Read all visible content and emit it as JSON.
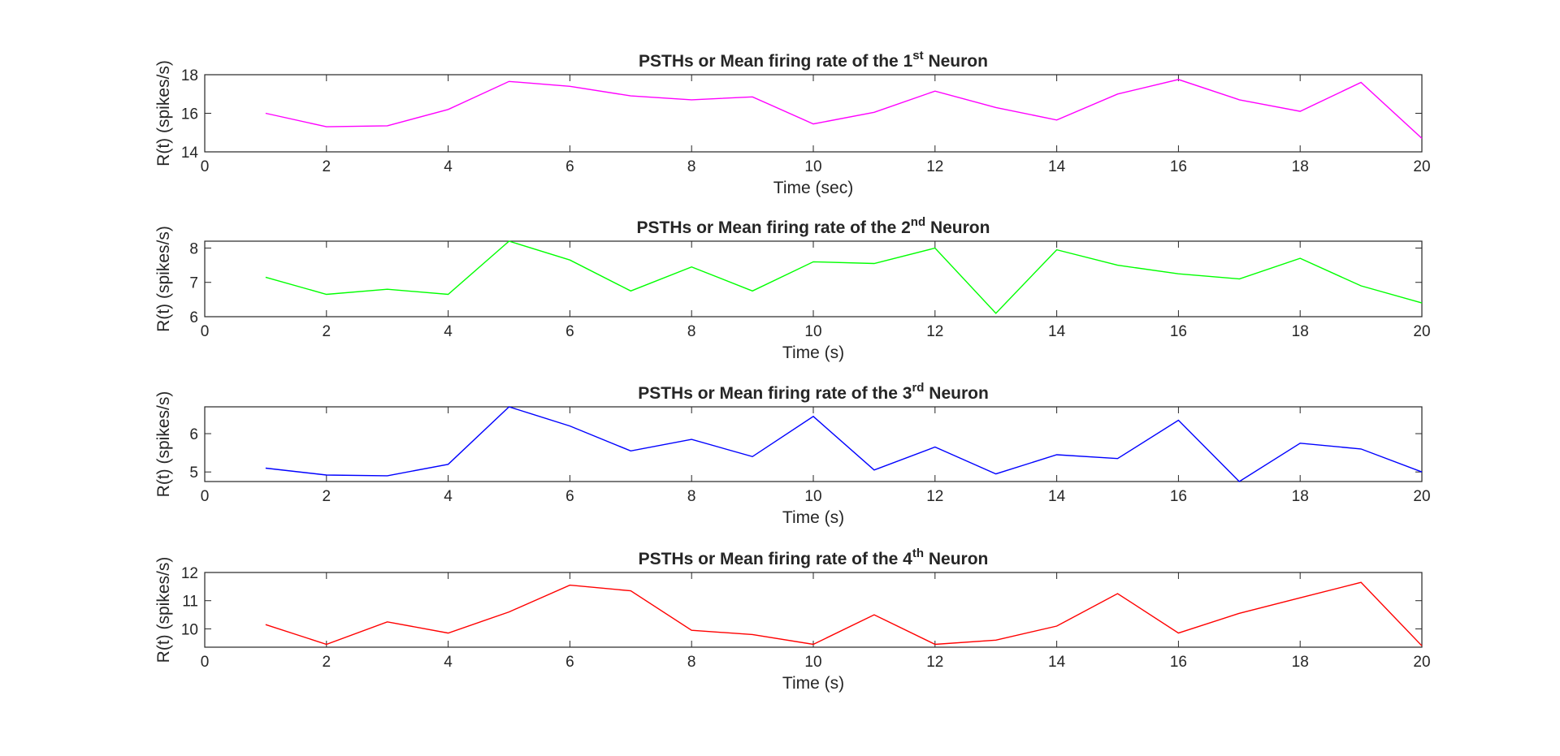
{
  "figure": {
    "background": "#ffffff",
    "axis_color": "#262626"
  },
  "chart_data": [
    {
      "type": "line",
      "title": "PSTHs or Mean firing rate of the 1st Neuron",
      "title_parts": {
        "prefix": "PSTHs or Mean firing rate of the 1",
        "sup": "st",
        "suffix": " Neuron"
      },
      "xlabel": "Time (sec)",
      "ylabel": "R(t) (spikes/s)",
      "xlim": [
        0,
        20
      ],
      "ylim": [
        14,
        18
      ],
      "xticks": [
        0,
        2,
        4,
        6,
        8,
        10,
        12,
        14,
        16,
        18,
        20
      ],
      "yticks": [
        14,
        16,
        18
      ],
      "grid": false,
      "series": [
        {
          "color": "#ff00ff",
          "x": [
            1,
            2,
            3,
            4,
            5,
            6,
            7,
            8,
            9,
            10,
            11,
            12,
            13,
            14,
            15,
            16,
            17,
            18,
            19,
            20
          ],
          "y": [
            16.0,
            15.3,
            15.35,
            16.2,
            17.65,
            17.4,
            16.9,
            16.7,
            16.85,
            15.45,
            16.05,
            17.15,
            16.3,
            15.65,
            17.0,
            17.75,
            16.7,
            16.1,
            17.6,
            14.7
          ]
        }
      ]
    },
    {
      "type": "line",
      "title": "PSTHs or Mean firing rate of the 2nd Neuron",
      "title_parts": {
        "prefix": "PSTHs or Mean firing rate of the 2",
        "sup": "nd",
        "suffix": " Neuron"
      },
      "xlabel": "Time (s)",
      "ylabel": "R(t) (spikes/s)",
      "xlim": [
        0,
        20
      ],
      "ylim": [
        6,
        8.2
      ],
      "xticks": [
        0,
        2,
        4,
        6,
        8,
        10,
        12,
        14,
        16,
        18,
        20
      ],
      "yticks": [
        6,
        7,
        8
      ],
      "grid": false,
      "series": [
        {
          "color": "#00ff00",
          "x": [
            1,
            2,
            3,
            4,
            5,
            6,
            7,
            8,
            9,
            10,
            11,
            12,
            13,
            14,
            15,
            16,
            17,
            18,
            19,
            20
          ],
          "y": [
            7.15,
            6.65,
            6.8,
            6.65,
            8.2,
            7.65,
            6.75,
            7.45,
            6.75,
            7.6,
            7.55,
            8.0,
            6.1,
            7.95,
            7.5,
            7.25,
            7.1,
            7.7,
            6.9,
            6.4
          ]
        }
      ]
    },
    {
      "type": "line",
      "title": "PSTHs or Mean firing rate of the 3rd Neuron",
      "title_parts": {
        "prefix": "PSTHs or Mean firing rate of the 3",
        "sup": "rd",
        "suffix": " Neuron"
      },
      "xlabel": "Time (s)",
      "ylabel": "R(t) (spikes/s)",
      "xlim": [
        0,
        20
      ],
      "ylim": [
        4.75,
        6.7
      ],
      "xticks": [
        0,
        2,
        4,
        6,
        8,
        10,
        12,
        14,
        16,
        18,
        20
      ],
      "yticks": [
        5,
        6
      ],
      "grid": false,
      "series": [
        {
          "color": "#0000ff",
          "x": [
            1,
            2,
            3,
            4,
            5,
            6,
            7,
            8,
            9,
            10,
            11,
            12,
            13,
            14,
            15,
            16,
            17,
            18,
            19,
            20
          ],
          "y": [
            5.1,
            4.92,
            4.9,
            5.2,
            6.7,
            6.2,
            5.55,
            5.85,
            5.4,
            6.45,
            5.05,
            5.65,
            4.95,
            5.45,
            5.35,
            6.35,
            4.75,
            5.75,
            5.6,
            5.0
          ]
        }
      ]
    },
    {
      "type": "line",
      "title": "PSTHs or Mean firing rate of the 4th Neuron",
      "title_parts": {
        "prefix": "PSTHs or Mean firing rate of the 4",
        "sup": "th",
        "suffix": " Neuron"
      },
      "xlabel": "Time (s)",
      "ylabel": "R(t) (spikes/s)",
      "xlim": [
        0,
        20
      ],
      "ylim": [
        9.35,
        12
      ],
      "xticks": [
        0,
        2,
        4,
        6,
        8,
        10,
        12,
        14,
        16,
        18,
        20
      ],
      "yticks": [
        10,
        11,
        12
      ],
      "grid": false,
      "series": [
        {
          "color": "#ff0000",
          "x": [
            1,
            2,
            3,
            4,
            5,
            6,
            7,
            8,
            9,
            10,
            11,
            12,
            13,
            14,
            15,
            16,
            17,
            18,
            19,
            20
          ],
          "y": [
            10.15,
            9.45,
            10.25,
            9.85,
            10.6,
            11.55,
            11.35,
            9.95,
            9.8,
            9.45,
            10.5,
            9.45,
            9.6,
            10.1,
            11.25,
            9.85,
            10.55,
            11.1,
            11.65,
            9.4
          ]
        }
      ]
    }
  ]
}
